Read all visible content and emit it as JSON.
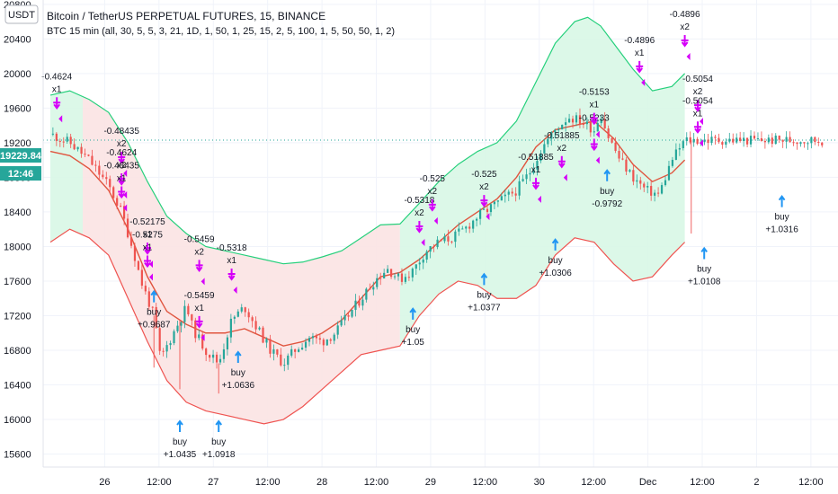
{
  "header": {
    "currency_badge": "USDT",
    "title": "Bitcoin / TetherUS PERPETUAL FUTURES, 15, BINANCE",
    "indicator": "BTC 15 min (all, 30, 5, 5, 3, 21, 1D, 1, 50, 1, 25, 15, 2, 5, 100, 1, 5, 50, 50, 1, 2)"
  },
  "price_axis": {
    "last_price": "19229.84",
    "countdown": "12:46"
  },
  "colors": {
    "upper_band": "#26d07c",
    "lower_band": "#ef5350",
    "fill_bull": "#d8f7e6",
    "fill_bear": "#fbe3e3",
    "basis": "#e0553f",
    "candle_up": "#26a69a",
    "candle_down": "#ef5350",
    "buy_arrow": "#2196f3",
    "sell_arrow": "#d500f9"
  },
  "chart_data": {
    "type": "candlestick",
    "title": "Bitcoin / TetherUS PERPETUAL FUTURES, 15, BINANCE",
    "ylim": [
      15450,
      20850
    ],
    "y_ticks": [
      15600,
      16000,
      16400,
      16800,
      17200,
      17600,
      18000,
      18400,
      18800,
      19200,
      19600,
      20000,
      20400,
      20800
    ],
    "x_ticks": [
      "26",
      "12:00",
      "27",
      "12:00",
      "28",
      "12:00",
      "29",
      "12:00",
      "30",
      "12:00",
      "Dec",
      "12:00",
      "2",
      "12:00"
    ],
    "price_path": [
      [
        0,
        19300
      ],
      [
        3,
        19200
      ],
      [
        6,
        19000
      ],
      [
        9,
        18700
      ],
      [
        11,
        18400
      ],
      [
        13,
        17900
      ],
      [
        14,
        17600
      ],
      [
        16,
        17200
      ],
      [
        17,
        16700
      ],
      [
        19,
        17000
      ],
      [
        21,
        17300
      ],
      [
        22,
        17050
      ],
      [
        24,
        16800
      ],
      [
        26,
        16650
      ],
      [
        27,
        16900
      ],
      [
        28,
        17150
      ],
      [
        30,
        17300
      ],
      [
        32,
        17050
      ],
      [
        34,
        16800
      ],
      [
        36,
        16650
      ],
      [
        38,
        16820
      ],
      [
        40,
        16950
      ],
      [
        42,
        16900
      ],
      [
        44,
        17000
      ],
      [
        46,
        17200
      ],
      [
        48,
        17400
      ],
      [
        50,
        17600
      ],
      [
        52,
        17750
      ],
      [
        54,
        17620
      ],
      [
        56,
        17720
      ],
      [
        58,
        17950
      ],
      [
        60,
        18050
      ],
      [
        62,
        18100
      ],
      [
        64,
        18200
      ],
      [
        66,
        18350
      ],
      [
        68,
        18450
      ],
      [
        70,
        18550
      ],
      [
        72,
        18650
      ],
      [
        74,
        18850
      ],
      [
        76,
        19150
      ],
      [
        78,
        19350
      ],
      [
        80,
        19500
      ],
      [
        82,
        19450
      ],
      [
        84,
        19350
      ],
      [
        85,
        19550
      ],
      [
        86,
        19300
      ],
      [
        88,
        19000
      ],
      [
        90,
        18800
      ],
      [
        92,
        18650
      ],
      [
        94,
        18600
      ],
      [
        96,
        19000
      ],
      [
        98,
        19229
      ]
    ],
    "upper_band": [
      [
        0,
        19750
      ],
      [
        3,
        19800
      ],
      [
        6,
        19700
      ],
      [
        9,
        19550
      ],
      [
        12,
        19200
      ],
      [
        15,
        18750
      ],
      [
        18,
        18350
      ],
      [
        21,
        18150
      ],
      [
        24,
        18000
      ],
      [
        27,
        17950
      ],
      [
        30,
        17900
      ],
      [
        33,
        17850
      ],
      [
        36,
        17800
      ],
      [
        39,
        17820
      ],
      [
        42,
        17880
      ],
      [
        45,
        17950
      ],
      [
        48,
        18100
      ],
      [
        51,
        18250
      ],
      [
        54,
        18260
      ],
      [
        57,
        18500
      ],
      [
        60,
        18750
      ],
      [
        63,
        18950
      ],
      [
        66,
        19100
      ],
      [
        69,
        19200
      ],
      [
        72,
        19450
      ],
      [
        75,
        19900
      ],
      [
        78,
        20350
      ],
      [
        81,
        20600
      ],
      [
        83,
        20650
      ],
      [
        85,
        20550
      ],
      [
        87,
        20350
      ],
      [
        90,
        20050
      ],
      [
        93,
        19800
      ],
      [
        96,
        19850
      ],
      [
        98,
        20000
      ]
    ],
    "lower_band": [
      [
        0,
        18050
      ],
      [
        3,
        18200
      ],
      [
        6,
        18100
      ],
      [
        9,
        17900
      ],
      [
        12,
        17400
      ],
      [
        15,
        16900
      ],
      [
        18,
        16450
      ],
      [
        21,
        16200
      ],
      [
        24,
        16100
      ],
      [
        27,
        16050
      ],
      [
        30,
        16000
      ],
      [
        33,
        15950
      ],
      [
        36,
        16000
      ],
      [
        39,
        16150
      ],
      [
        42,
        16350
      ],
      [
        45,
        16550
      ],
      [
        48,
        16750
      ],
      [
        51,
        16800
      ],
      [
        54,
        16850
      ],
      [
        57,
        17200
      ],
      [
        60,
        17450
      ],
      [
        63,
        17600
      ],
      [
        66,
        17550
      ],
      [
        69,
        17400
      ],
      [
        72,
        17400
      ],
      [
        75,
        17550
      ],
      [
        78,
        17900
      ],
      [
        81,
        18100
      ],
      [
        84,
        18050
      ],
      [
        87,
        17800
      ],
      [
        90,
        17600
      ],
      [
        93,
        17650
      ],
      [
        96,
        17900
      ],
      [
        98,
        18050
      ]
    ],
    "basis": [
      [
        0,
        19100
      ],
      [
        3,
        19050
      ],
      [
        6,
        18900
      ],
      [
        9,
        18650
      ],
      [
        12,
        18200
      ],
      [
        15,
        17650
      ],
      [
        18,
        17250
      ],
      [
        21,
        17100
      ],
      [
        24,
        17000
      ],
      [
        27,
        17000
      ],
      [
        30,
        17050
      ],
      [
        33,
        16950
      ],
      [
        36,
        16850
      ],
      [
        39,
        16900
      ],
      [
        42,
        17000
      ],
      [
        45,
        17150
      ],
      [
        48,
        17400
      ],
      [
        51,
        17650
      ],
      [
        54,
        17700
      ],
      [
        57,
        17850
      ],
      [
        60,
        18050
      ],
      [
        63,
        18250
      ],
      [
        66,
        18400
      ],
      [
        69,
        18550
      ],
      [
        72,
        18800
      ],
      [
        75,
        19150
      ],
      [
        78,
        19350
      ],
      [
        81,
        19400
      ],
      [
        84,
        19450
      ],
      [
        87,
        19250
      ],
      [
        90,
        18950
      ],
      [
        93,
        18750
      ],
      [
        96,
        18850
      ],
      [
        98,
        19000
      ]
    ],
    "bear_zone_t": [
      5,
      54
    ],
    "annotations": [
      {
        "type": "sell",
        "t": 1,
        "price": 19580,
        "value": "-0.4624",
        "mult": "x1"
      },
      {
        "type": "sell",
        "t": 11,
        "price": 18950,
        "value": "-0.48435",
        "mult": "x2"
      },
      {
        "type": "sell",
        "t": 11,
        "price": 18700,
        "value": "-0.4624",
        "mult": "x2"
      },
      {
        "type": "sell",
        "t": 11,
        "price": 18550,
        "value": "-0.48435",
        "mult": "x1"
      },
      {
        "type": "sell",
        "t": 15,
        "price": 17900,
        "value": "-0.52175",
        "mult": "x1"
      },
      {
        "type": "sell",
        "t": 15,
        "price": 17750,
        "value": "-0.5275",
        "mult": "x1"
      },
      {
        "type": "sell",
        "t": 23,
        "price": 17700,
        "value": "-0.5459",
        "mult": "x2"
      },
      {
        "type": "sell",
        "t": 28,
        "price": 17600,
        "value": "-0.5318",
        "mult": "x1"
      },
      {
        "type": "sell",
        "t": 23,
        "price": 17050,
        "value": "-0.5459",
        "mult": "x1"
      },
      {
        "type": "sell",
        "t": 57,
        "price": 18150,
        "value": "-0.5318",
        "mult": "x2"
      },
      {
        "type": "sell",
        "t": 59,
        "price": 18400,
        "value": "-0.525",
        "mult": "x2"
      },
      {
        "type": "sell",
        "t": 67,
        "price": 18450,
        "value": "-0.525",
        "mult": "x2"
      },
      {
        "type": "sell",
        "t": 75,
        "price": 18650,
        "value": "-0.51885",
        "mult": "x1"
      },
      {
        "type": "sell",
        "t": 79,
        "price": 18900,
        "value": "-0.51885",
        "mult": "x2"
      },
      {
        "type": "sell",
        "t": 84,
        "price": 19100,
        "value": "-0.5233",
        "mult": ""
      },
      {
        "type": "sell",
        "t": 84,
        "price": 19400,
        "value": "-0.5153",
        "mult": "x1"
      },
      {
        "type": "sell",
        "t": 91,
        "price": 20000,
        "value": "-0.4896",
        "mult": "x1"
      },
      {
        "type": "sell",
        "t": 98,
        "price": 20300,
        "value": "-0.4896",
        "mult": "x2"
      },
      {
        "type": "sell",
        "t": 100,
        "price": 19550,
        "value": "-0.5054",
        "mult": "x2"
      },
      {
        "type": "sell",
        "t": 100,
        "price": 19300,
        "value": "-0.5054",
        "mult": "x1"
      },
      {
        "type": "buy",
        "t": 16,
        "price": 17500,
        "value": "+0.9687",
        "label": "buy"
      },
      {
        "type": "buy",
        "t": 20,
        "price": 16000,
        "value": "+1.0435",
        "label": "buy"
      },
      {
        "type": "buy",
        "t": 26,
        "price": 16000,
        "value": "+1.0918",
        "label": "buy"
      },
      {
        "type": "buy",
        "t": 29,
        "price": 16800,
        "value": "+1.0636",
        "label": "buy"
      },
      {
        "type": "buy",
        "t": 56,
        "price": 17300,
        "value": "+1.05",
        "label": "buy"
      },
      {
        "type": "buy",
        "t": 67,
        "price": 17700,
        "value": "+1.0377",
        "label": "buy"
      },
      {
        "type": "buy",
        "t": 78,
        "price": 18100,
        "value": "+1.0306",
        "label": "buy"
      },
      {
        "type": "buy",
        "t": 86,
        "price": 18900,
        "value": "-0.9792",
        "label": "buy"
      },
      {
        "type": "buy",
        "t": 101,
        "price": 18000,
        "value": "+1.0108",
        "label": "buy"
      },
      {
        "type": "buy",
        "t": 113,
        "price": 18600,
        "value": "+1.0316",
        "label": "buy"
      }
    ]
  }
}
